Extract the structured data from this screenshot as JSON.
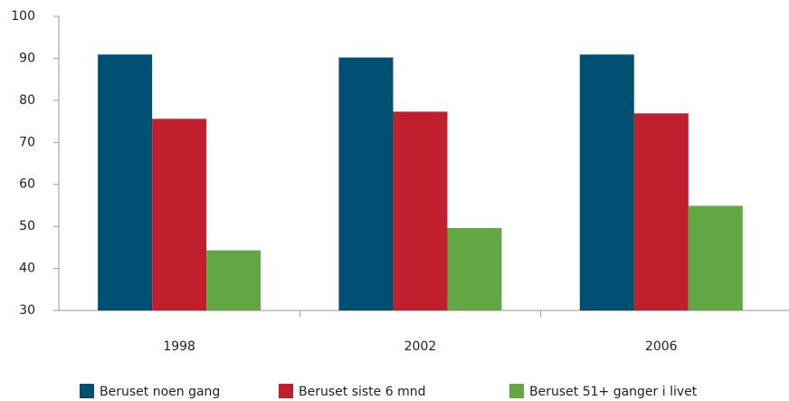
{
  "chart_data": {
    "type": "bar",
    "categories": [
      "1998",
      "2002",
      "2006"
    ],
    "series": [
      {
        "name": "Beruset noen gang",
        "color": "#005073",
        "values": [
          90.9,
          90.2,
          90.9
        ]
      },
      {
        "name": "Beruset siste 6 mnd",
        "color": "#c0202e",
        "values": [
          75.6,
          77.3,
          76.9
        ]
      },
      {
        "name": "Beruset 51+ ganger i livet",
        "color": "#62a744",
        "values": [
          44.3,
          49.6,
          54.9
        ]
      }
    ],
    "ylim": [
      30,
      100
    ],
    "yticks": [
      30,
      40,
      50,
      60,
      70,
      80,
      90,
      100
    ],
    "grid": false
  }
}
